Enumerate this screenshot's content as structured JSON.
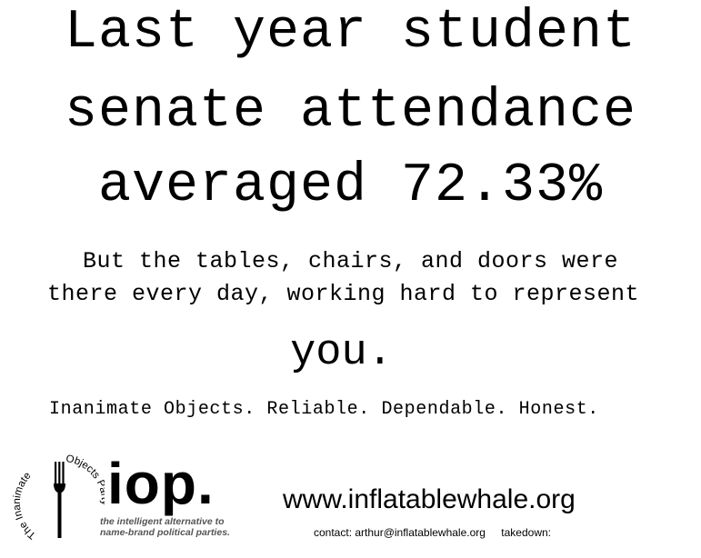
{
  "headline": {
    "line1": "Last year student",
    "line2": "senate attendance",
    "line3": "averaged 72.33%"
  },
  "subtext": {
    "line1": "But the tables, chairs, and doors were",
    "line2": "there every day, working hard to represent",
    "emphasis": "you."
  },
  "tagline": "Inanimate Objects. Reliable. Dependable. Honest.",
  "logo": {
    "wordmark": "iop.",
    "arc_left": "The Inanimate",
    "arc_right": "Objects Party",
    "slogan_line1": "the intelligent alternative to",
    "slogan_line2": "name-brand political parties.",
    "icon": "fork-icon"
  },
  "footer": {
    "url": "www.inflatablewhale.org",
    "contact": "contact: arthur@inflatablewhale.org",
    "takedown": "takedown:"
  },
  "colors": {
    "text": "#000000",
    "background": "#ffffff",
    "slogan": "#555555"
  }
}
